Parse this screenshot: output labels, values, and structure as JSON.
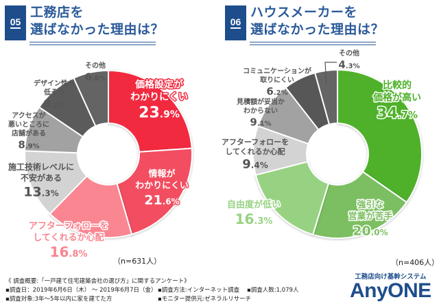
{
  "panels": [
    {
      "number": "05",
      "title_line1": "工務店を",
      "title_line2": "選ばなかった理由は？",
      "sample_size": "（n=631人）"
    },
    {
      "number": "06",
      "title_line1": "ハウスメーカーを",
      "title_line2": "選ばなかった理由は？",
      "sample_size": "（n=406人）"
    }
  ],
  "chart_data": [
    {
      "type": "pie",
      "subtype": "donut",
      "title": "工務店を選ばなかった理由は？",
      "sample": "n=631人",
      "start": "top, clockwise",
      "slices": [
        {
          "label": [
            "価格設定が",
            "わかりにくい"
          ],
          "value": 23.9,
          "color": "#f22b40",
          "emphasis": true
        },
        {
          "label": [
            "情報が",
            "わかりにくい"
          ],
          "value": 21.6,
          "color": "#f24d60",
          "emphasis": true
        },
        {
          "label": [
            "アフターフォローを",
            "してくれるか心配"
          ],
          "value": 16.8,
          "color": "#f98690",
          "emphasis": true
        },
        {
          "label": [
            "施工技術レベルに",
            "不安がある"
          ],
          "value": 13.3,
          "color": "#d3d3d3",
          "emphasis": false
        },
        {
          "label": [
            "アクセスが",
            "悪いところに",
            "店舗がある"
          ],
          "value": 8.9,
          "color": "#a2a2a2",
          "emphasis": false
        },
        {
          "label": [
            "デザイン性が",
            "低そう"
          ],
          "value": 8.7,
          "color": "#5b5b5b",
          "emphasis": false
        },
        {
          "label": [
            "その他"
          ],
          "value": 6.8,
          "color": "#646464",
          "emphasis": false
        }
      ]
    },
    {
      "type": "pie",
      "subtype": "donut",
      "title": "ハウスメーカーを選ばなかった理由は？",
      "sample": "n=406人",
      "start": "top, clockwise",
      "slices": [
        {
          "label": [
            "比較的",
            "価格が高い"
          ],
          "value": 34.7,
          "color": "#4fb12a",
          "emphasis": true
        },
        {
          "label": [
            "強引な",
            "営業が苦手"
          ],
          "value": 20.0,
          "color": "#7cbf62",
          "emphasis": true
        },
        {
          "label": [
            "自由度が低い"
          ],
          "value": 16.3,
          "color": "#97d282",
          "emphasis": true
        },
        {
          "label": [
            "アフターフォローを",
            "してくれるか心配"
          ],
          "value": 9.4,
          "color": "#d3d3d3",
          "emphasis": false
        },
        {
          "label": [
            "見積額が妥当か",
            "わからない"
          ],
          "value": 9.1,
          "color": "#a2a2a2",
          "emphasis": false
        },
        {
          "label": [
            "コミュニケーションが",
            "取りにくい"
          ],
          "value": 6.2,
          "color": "#575757",
          "emphasis": false
        },
        {
          "label": [
            "その他"
          ],
          "value": 4.3,
          "color": "#656565",
          "emphasis": false
        }
      ]
    }
  ],
  "survey_notes": {
    "overview": "《 調査概要:「一戸建て住宅建築会社の選び方」に関するアンケート》",
    "date": "▪調査日：2019年6月6日（木） ～  2019年6月7日（金）",
    "method": "▪調査方法:インターネット調査",
    "respondents": "▪調査人数:1,079人",
    "target": "▪調査対象:3年～5年以内に家を建てた方",
    "provider": "▪モニター提供元:ゼネラルリサーチ"
  },
  "logo": {
    "subtitle": "工務店向け基幹システム",
    "name": "AnyONE"
  }
}
